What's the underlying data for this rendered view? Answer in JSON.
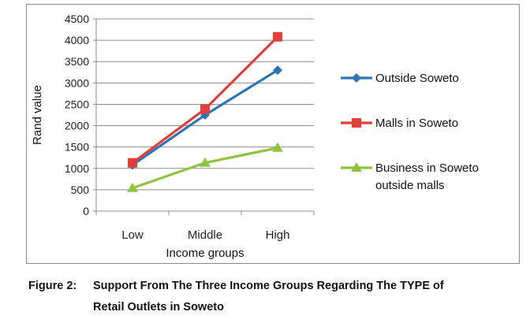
{
  "chart_data": {
    "type": "line",
    "categories": [
      "Low",
      "Middle",
      "High"
    ],
    "series": [
      {
        "name": "Outside Soweto",
        "values": [
          1080,
          2250,
          3300
        ],
        "color": "#2e75b6",
        "marker": "diamond"
      },
      {
        "name": "Malls in Soweto",
        "values": [
          1130,
          2390,
          4080
        ],
        "color": "#e0403a",
        "marker": "square"
      },
      {
        "name": "Business in Soweto outside malls",
        "legend_lines": [
          "Business in Soweto",
          "outside malls"
        ],
        "values": [
          540,
          1130,
          1480
        ],
        "color": "#8fc440",
        "marker": "triangle"
      }
    ],
    "xlabel": "Income groups",
    "ylabel": "Rand value",
    "ylim": [
      0,
      4500
    ],
    "yticks": [
      0,
      500,
      1000,
      1500,
      2000,
      2500,
      3000,
      3500,
      4000,
      4500
    ],
    "grid": "horizontal",
    "legend": "right"
  },
  "caption": {
    "label": "Figure 2:",
    "line1": "Support From The Three Income Groups Regarding The TYPE of",
    "line2": "Retail Outlets in Soweto"
  }
}
